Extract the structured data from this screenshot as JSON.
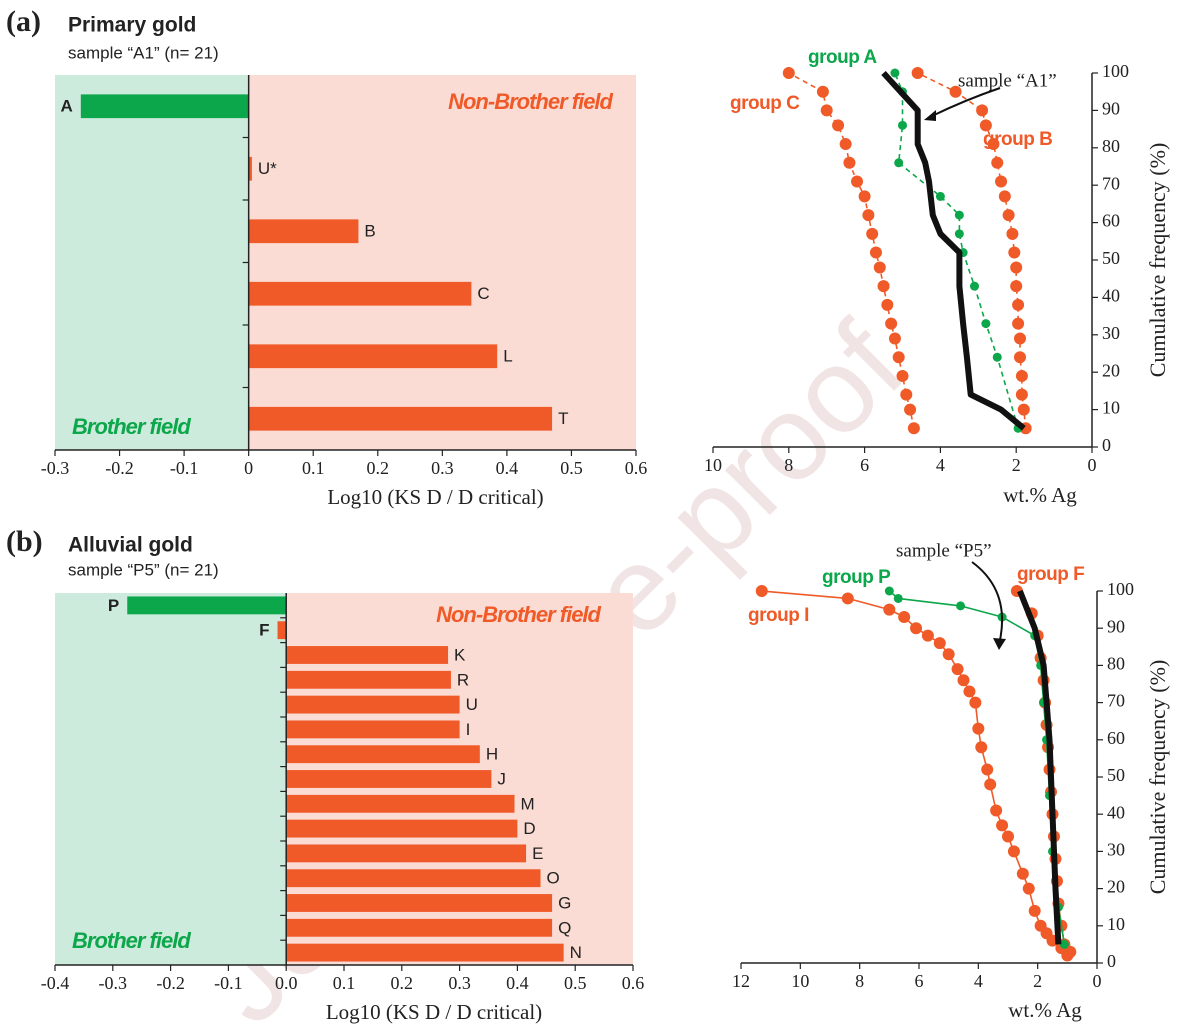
{
  "watermark": "Journal Pre-proof",
  "chart_data": [
    {
      "type": "bar",
      "panel_label": "(a)",
      "title": "Primary gold",
      "subtitle": "sample “A1” (n= 21)",
      "xlabel": "Log10 (KS D / D critical)",
      "left_field": "Brother field",
      "right_field": "Non-Brother field",
      "left_field_color": "#cdebdc",
      "right_field_color": "#fbdcd4",
      "categories": [
        "A",
        "U*",
        "B",
        "C",
        "L",
        "T"
      ],
      "values": [
        -0.26,
        0.005,
        0.17,
        0.345,
        0.385,
        0.47
      ],
      "colors": [
        "#0ca64b",
        "#ef5a28",
        "#ef5a28",
        "#ef5a28",
        "#ef5a28",
        "#ef5a28"
      ],
      "xlim": [
        -0.3,
        0.6
      ],
      "xticks": [
        -0.3,
        -0.2,
        -0.1,
        0,
        0.1,
        0.2,
        0.3,
        0.4,
        0.5,
        0.6
      ]
    },
    {
      "type": "line",
      "xlabel": "wt.% Ag",
      "ylabel": "Cumulative frequency (%)",
      "xlim": [
        10,
        0
      ],
      "xticks": [
        10,
        8,
        6,
        4,
        2,
        0
      ],
      "ylim": [
        0,
        100
      ],
      "yticks": [
        0,
        10,
        20,
        30,
        40,
        50,
        60,
        70,
        80,
        90,
        100
      ],
      "series": [
        {
          "name": "group C",
          "color": "#ef5a28",
          "line_style": "dashed",
          "marker": true,
          "x": [
            4.7,
            4.8,
            4.9,
            5.0,
            5.1,
            5.2,
            5.3,
            5.4,
            5.5,
            5.6,
            5.7,
            5.8,
            5.9,
            6.0,
            6.2,
            6.4,
            6.5,
            6.7,
            7.0,
            7.1,
            8.0
          ],
          "y": [
            5,
            10,
            14,
            19,
            24,
            29,
            33,
            38,
            43,
            48,
            52,
            57,
            62,
            67,
            71,
            76,
            81,
            86,
            90,
            95,
            100
          ]
        },
        {
          "name": "group B",
          "color": "#ef5a28",
          "line_style": "dashed",
          "marker": true,
          "x": [
            1.75,
            1.8,
            1.85,
            1.85,
            1.9,
            1.9,
            1.95,
            1.95,
            2.0,
            2.0,
            2.05,
            2.1,
            2.2,
            2.3,
            2.4,
            2.5,
            2.6,
            2.8,
            2.9,
            3.6,
            4.6
          ],
          "y": [
            5,
            10,
            14,
            19,
            24,
            29,
            33,
            38,
            43,
            48,
            52,
            57,
            62,
            67,
            71,
            76,
            81,
            86,
            90,
            95,
            100
          ]
        },
        {
          "name": "group A",
          "color": "#0ca64b",
          "line_style": "dashed",
          "marker": true,
          "x": [
            1.95,
            2.5,
            2.8,
            3.1,
            3.4,
            3.5,
            3.5,
            4.0,
            5.1,
            5.0,
            5.0,
            5.2
          ],
          "y": [
            5,
            24,
            33,
            43,
            52,
            57,
            62,
            67,
            76,
            86,
            95,
            100
          ]
        },
        {
          "name": "sample “A1”",
          "color": "#111111",
          "line_style": "solid",
          "marker": false,
          "x": [
            1.8,
            2.4,
            3.2,
            3.3,
            3.4,
            3.5,
            3.5,
            4.0,
            4.2,
            4.3,
            4.4,
            4.6,
            4.6,
            5.5
          ],
          "y": [
            5,
            10,
            14,
            24,
            33,
            43,
            52,
            57,
            62,
            71,
            76,
            81,
            90,
            100
          ]
        }
      ]
    },
    {
      "type": "bar",
      "panel_label": "(b)",
      "title": "Alluvial gold",
      "subtitle": "sample “P5” (n= 21)",
      "xlabel": "Log10 (KS D / D critical)",
      "left_field": "Brother field",
      "right_field": "Non-Brother field",
      "left_field_color": "#cdebdc",
      "right_field_color": "#fbdcd4",
      "categories": [
        "P",
        "F",
        "K",
        "R",
        "U",
        "I",
        "H",
        "J",
        "M",
        "D",
        "E",
        "O",
        "G",
        "Q",
        "N"
      ],
      "values": [
        -0.275,
        -0.015,
        0.28,
        0.285,
        0.3,
        0.3,
        0.335,
        0.355,
        0.395,
        0.4,
        0.415,
        0.44,
        0.46,
        0.46,
        0.48
      ],
      "colors": [
        "#0ca64b",
        "#ef5a28",
        "#ef5a28",
        "#ef5a28",
        "#ef5a28",
        "#ef5a28",
        "#ef5a28",
        "#ef5a28",
        "#ef5a28",
        "#ef5a28",
        "#ef5a28",
        "#ef5a28",
        "#ef5a28",
        "#ef5a28",
        "#ef5a28"
      ],
      "xlim": [
        -0.4,
        0.6
      ],
      "xticks": [
        -0.4,
        -0.3,
        -0.2,
        -0.1,
        {
          "value": 0,
          "label": "0.0"
        },
        0.1,
        0.2,
        0.3,
        0.4,
        0.5,
        0.6
      ]
    },
    {
      "type": "line",
      "xlabel": "wt.% Ag",
      "ylabel": "Cumulative frequency (%)",
      "xlim": [
        12,
        0
      ],
      "xticks": [
        12,
        10,
        8,
        6,
        4,
        2,
        0
      ],
      "ylim": [
        0,
        100
      ],
      "yticks": [
        0,
        10,
        20,
        30,
        40,
        50,
        60,
        70,
        80,
        90,
        100
      ],
      "series": [
        {
          "name": "group I",
          "color": "#ef5a28",
          "line_style": "solid",
          "marker": true,
          "x": [
            1.0,
            1.2,
            1.5,
            1.7,
            1.9,
            2.1,
            2.3,
            2.5,
            2.8,
            3.0,
            3.2,
            3.4,
            3.6,
            3.7,
            3.9,
            4.0,
            4.1,
            4.3,
            4.5,
            4.7,
            5.0,
            5.3,
            5.7,
            6.1,
            6.5,
            7.0,
            8.4,
            11.3
          ],
          "y": [
            2,
            4,
            6,
            8,
            10,
            14,
            20,
            24,
            30,
            34,
            37,
            41,
            48,
            52,
            58,
            63,
            70,
            73,
            76,
            79,
            83,
            86,
            88,
            90,
            93,
            95,
            98,
            100
          ]
        },
        {
          "name": "group F",
          "color": "#ef5a28",
          "line_style": "solid",
          "marker": true,
          "x": [
            0.9,
            1.1,
            1.2,
            1.3,
            1.35,
            1.4,
            1.45,
            1.5,
            1.55,
            1.6,
            1.65,
            1.7,
            1.75,
            1.8,
            1.9,
            2.0,
            2.2,
            2.7
          ],
          "y": [
            3,
            5,
            10,
            16,
            22,
            28,
            34,
            40,
            46,
            52,
            58,
            64,
            70,
            76,
            82,
            88,
            94,
            100
          ]
        },
        {
          "name": "group P",
          "color": "#0ca64b",
          "line_style": "solid",
          "marker": true,
          "x": [
            1.1,
            1.3,
            1.5,
            1.6,
            1.7,
            1.8,
            1.9,
            2.1,
            3.2,
            4.6,
            6.7,
            7.0
          ],
          "y": [
            5,
            15,
            30,
            45,
            60,
            70,
            80,
            88,
            93,
            96,
            98,
            100
          ]
        },
        {
          "name": "sample “P5”",
          "color": "#111111",
          "line_style": "solid",
          "marker": false,
          "x": [
            1.3,
            1.4,
            1.5,
            1.6,
            1.7,
            1.8,
            2.1,
            2.6
          ],
          "y": [
            5,
            20,
            40,
            60,
            70,
            80,
            90,
            100
          ]
        }
      ]
    }
  ]
}
